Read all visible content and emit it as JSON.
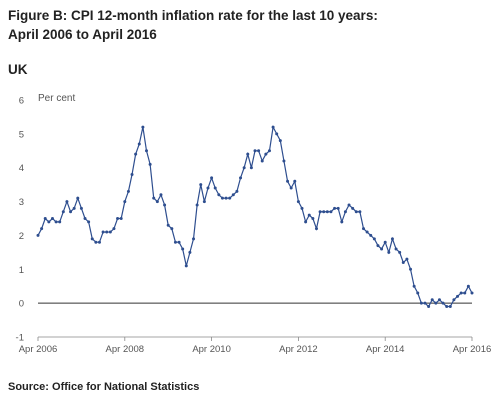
{
  "figure": {
    "title_line1": "Figure B: CPI 12-month inflation rate for the last 10 years:",
    "title_line2": "April 2006 to April 2016",
    "subtitle": "UK",
    "source": "Source: Office for National Statistics"
  },
  "chart_data": {
    "type": "line",
    "ylabel": "Per cent",
    "ylim": [
      -1,
      6
    ],
    "yticks": [
      -1,
      0,
      1,
      2,
      3,
      4,
      5,
      6
    ],
    "x_tick_labels": [
      "Apr 2006",
      "Apr 2008",
      "Apr 2010",
      "Apr 2012",
      "Apr 2014",
      "Apr 2016"
    ],
    "x_start": "Apr 2006",
    "x_end": "Apr 2016",
    "line_color": "#2e4e8f",
    "zero_line": true,
    "series": [
      {
        "values": [
          2.0,
          2.2,
          2.5,
          2.4,
          2.5,
          2.4,
          2.4,
          2.7,
          3.0,
          2.7,
          2.8,
          3.1,
          2.8,
          2.5,
          2.4,
          1.9,
          1.8,
          1.8,
          2.1,
          2.1,
          2.1,
          2.2,
          2.5,
          2.5,
          3.0,
          3.3,
          3.8,
          4.4,
          4.7,
          5.2,
          4.5,
          4.1,
          3.1,
          3.0,
          3.2,
          2.9,
          2.3,
          2.2,
          1.8,
          1.8,
          1.6,
          1.1,
          1.5,
          1.9,
          2.9,
          3.5,
          3.0,
          3.4,
          3.7,
          3.4,
          3.2,
          3.1,
          3.1,
          3.1,
          3.2,
          3.3,
          3.7,
          4.0,
          4.4,
          4.0,
          4.5,
          4.5,
          4.2,
          4.4,
          4.5,
          5.2,
          5.0,
          4.8,
          4.2,
          3.6,
          3.4,
          3.6,
          3.0,
          2.8,
          2.4,
          2.6,
          2.5,
          2.2,
          2.7,
          2.7,
          2.7,
          2.7,
          2.8,
          2.8,
          2.4,
          2.7,
          2.9,
          2.8,
          2.7,
          2.7,
          2.2,
          2.1,
          2.0,
          1.9,
          1.7,
          1.6,
          1.8,
          1.5,
          1.9,
          1.6,
          1.5,
          1.2,
          1.3,
          1.0,
          0.5,
          0.3,
          0.0,
          0.0,
          -0.1,
          0.1,
          0.0,
          0.1,
          0.0,
          -0.1,
          -0.1,
          0.1,
          0.2,
          0.3,
          0.3,
          0.5,
          0.3
        ]
      }
    ]
  }
}
